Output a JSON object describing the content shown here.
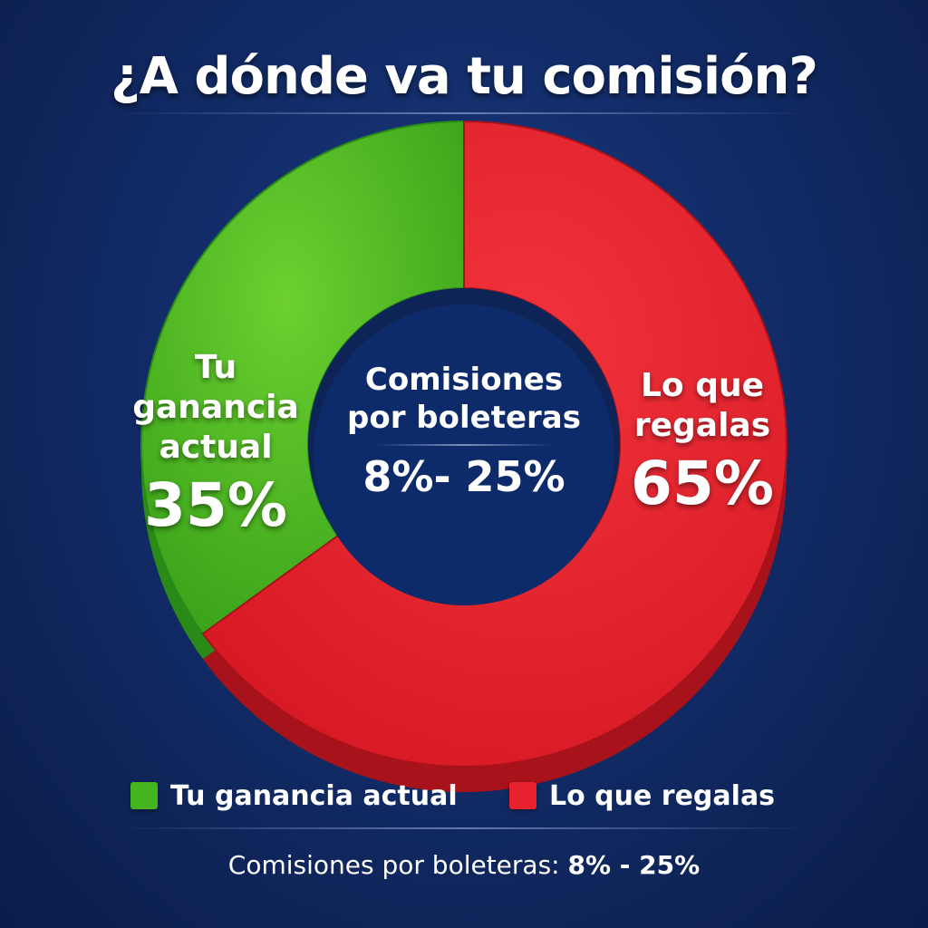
{
  "colors": {
    "green": "#45b51f",
    "green_dark": "#2a8a18",
    "red": "#e8222d",
    "red_dark": "#a8121b",
    "background": "#122c68"
  },
  "chart_data": {
    "type": "pie",
    "title": "¿A dónde va tu comisión?",
    "donut": true,
    "slices": [
      {
        "name": "Tu ganancia actual",
        "value": 35,
        "color": "#45b51f",
        "label_lines": "Tu\nganancia\nactual",
        "label_value": "35%"
      },
      {
        "name": "Lo que regalas",
        "value": 65,
        "color": "#e8222d",
        "label_lines": "Lo que\nregalas",
        "label_value": "65%"
      }
    ],
    "center": {
      "label": "Comisiones\npor boleteras",
      "value": "8%- 25%"
    },
    "legend": [
      {
        "name": "Tu ganancia actual",
        "color": "#45b51f"
      },
      {
        "name": "Lo que regalas",
        "color": "#e8222d"
      }
    ],
    "footnote": {
      "text": "Comisiones por boleteras:",
      "value": "8% - 25%"
    }
  }
}
